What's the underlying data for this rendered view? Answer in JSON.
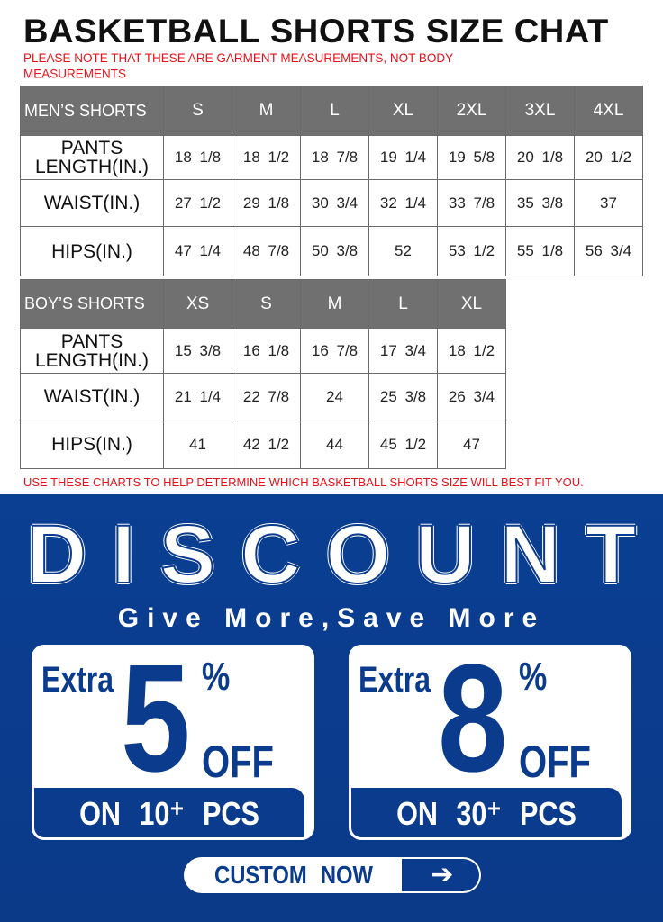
{
  "title": "BASKETBALL SHORTS SIZE CHAT",
  "note": "PLEASE NOTE THAT THESE ARE GARMENT MEASUREMENTS, NOT BODY MEASUREMENTS",
  "mens": {
    "header": "MEN’S SHORTS",
    "sizes": [
      "S",
      "M",
      "L",
      "XL",
      "2XL",
      "3XL",
      "4XL"
    ],
    "rows": [
      {
        "label": "PANTS LENGTH(IN.)",
        "values": [
          "18 1/8",
          "18 1/2",
          "18 7/8",
          "19 1/4",
          "19 5/8",
          "20 1/8",
          "20 1/2"
        ]
      },
      {
        "label": "WAIST(IN.)",
        "values": [
          "27 1/2",
          "29 1/8",
          "30 3/4",
          "32 1/4",
          "33 7/8",
          "35 3/8",
          "37"
        ]
      },
      {
        "label": "HIPS(IN.)",
        "values": [
          "47 1/4",
          "48 7/8",
          "50 3/8",
          "52",
          "53 1/2",
          "55 1/8",
          "56 3/4"
        ]
      }
    ]
  },
  "boys": {
    "header": "BOY’S SHORTS",
    "sizes": [
      "XS",
      "S",
      "M",
      "L",
      "XL"
    ],
    "rows": [
      {
        "label": "PANTS LENGTH(IN.)",
        "values": [
          "15 3/8",
          "16 1/8",
          "16 7/8",
          "17 3/4",
          "18 1/2"
        ]
      },
      {
        "label": "WAIST(IN.)",
        "values": [
          "21 1/4",
          "22 7/8",
          "24",
          "25 3/8",
          "26 3/4"
        ]
      },
      {
        "label": "HIPS(IN.)",
        "values": [
          "41",
          "42 1/2",
          "44",
          "45 1/2",
          "47"
        ]
      }
    ]
  },
  "footer_note": "USE THESE CHARTS TO HELP DETERMINE WHICH  BASKETBALL SHORTS SIZE WILL BEST FIT YOU.",
  "promo": {
    "headline": "DISCOUNT",
    "tagline": "Give More,Save More",
    "offers": [
      {
        "extra": "Extra",
        "number": "5",
        "percent": "%",
        "off": "OFF",
        "condition": "ON 10⁺ PCS"
      },
      {
        "extra": "Extra",
        "number": "8",
        "percent": "%",
        "off": "OFF",
        "condition": "ON 30⁺ PCS"
      }
    ],
    "cta": "CUSTOM NOW",
    "cta_icon": "arrow-right-icon"
  },
  "colors": {
    "brand_blue": "#0b3b8c",
    "note_red": "#e8101a",
    "header_gray": "#707070"
  }
}
